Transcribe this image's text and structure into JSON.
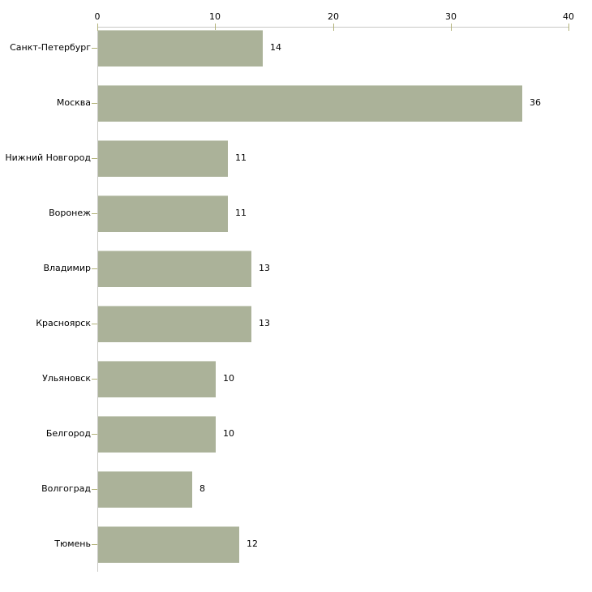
{
  "chart_data": {
    "type": "bar",
    "orientation": "horizontal",
    "title": "",
    "xlabel": "",
    "ylabel": "",
    "categories": [
      "Санкт-Петербург",
      "Москва",
      "Нижний Новгород",
      "Воронеж",
      "Владимир",
      "Красноярск",
      "Ульяновск",
      "Белгород",
      "Волгоград",
      "Тюмень"
    ],
    "values": [
      14,
      36,
      11,
      11,
      13,
      13,
      10,
      10,
      8,
      12
    ],
    "xticks": [
      "0",
      "10",
      "20",
      "30",
      "40"
    ],
    "xtick_values": [
      0,
      10,
      20,
      30,
      40
    ],
    "xlim": [
      0,
      40
    ],
    "grid": false,
    "legend_position": "none",
    "bar_labels_shown": true,
    "axis_position": "top",
    "colors": {
      "bar": "#abb299",
      "bar_top_edge": "#cdd2c2",
      "axis_line": "#c9c9c5",
      "tick_mark": "#b2b278",
      "text": "#000000",
      "background": "#ffffff"
    }
  }
}
